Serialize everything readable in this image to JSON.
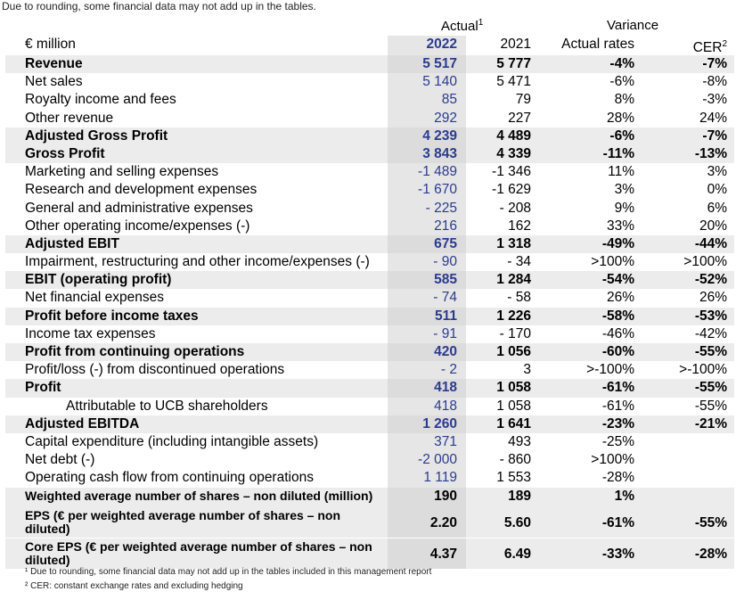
{
  "top_note": "Due to rounding, some financial data may not add up in the tables.",
  "header": {
    "unit": "€ million",
    "actual_group": "Actual",
    "actual_sup": "1",
    "variance_group": "Variance",
    "col_2022": "2022",
    "col_2021": "2021",
    "col_actual_rates": "Actual rates",
    "col_cer": "CER",
    "col_cer_sup": "2"
  },
  "rows": [
    {
      "label": "Revenue",
      "v2022": "5 517",
      "v2021": "5 777",
      "var": "-4%",
      "cer": "-7%",
      "bold": true,
      "shade": true
    },
    {
      "label": "Net sales",
      "v2022": "5 140",
      "v2021": "5 471",
      "var": "-6%",
      "cer": "-8%"
    },
    {
      "label": "Royalty income and fees",
      "v2022": "85",
      "v2021": "79",
      "var": "8%",
      "cer": "-3%"
    },
    {
      "label": "Other revenue",
      "v2022": "292",
      "v2021": "227",
      "var": "28%",
      "cer": "24%"
    },
    {
      "label": "Adjusted Gross Profit",
      "v2022": "4 239",
      "v2021": "4 489",
      "var": "-6%",
      "cer": "-7%",
      "bold": true,
      "shade": true
    },
    {
      "label": "Gross Profit",
      "v2022": "3 843",
      "v2021": "4 339",
      "var": "-11%",
      "cer": "-13%",
      "bold": true,
      "shade": true
    },
    {
      "label": "Marketing and selling expenses",
      "v2022": "-1 489",
      "v2021": "-1 346",
      "var": "11%",
      "cer": "3%"
    },
    {
      "label": "Research and development expenses",
      "v2022": "-1 670",
      "v2021": "-1 629",
      "var": "3%",
      "cer": "0%"
    },
    {
      "label": "General and administrative expenses",
      "v2022": "- 225",
      "v2021": "- 208",
      "var": "9%",
      "cer": "6%"
    },
    {
      "label": "Other operating income/expenses (-)",
      "v2022": "216",
      "v2021": "162",
      "var": "33%",
      "cer": "20%"
    },
    {
      "label": "Adjusted EBIT",
      "v2022": "675",
      "v2021": "1 318",
      "var": "-49%",
      "cer": "-44%",
      "bold": true,
      "shade": true
    },
    {
      "label": "Impairment, restructuring and other income/expenses (-)",
      "v2022": "- 90",
      "v2021": "- 34",
      "var": ">100%",
      "cer": ">100%"
    },
    {
      "label": "EBIT (operating profit)",
      "v2022": "585",
      "v2021": "1 284",
      "var": "-54%",
      "cer": "-52%",
      "bold": true,
      "shade": true
    },
    {
      "label": "Net financial expenses",
      "v2022": "- 74",
      "v2021": "- 58",
      "var": "26%",
      "cer": "26%"
    },
    {
      "label": "Profit before income taxes",
      "v2022": "511",
      "v2021": "1 226",
      "var": "-58%",
      "cer": "-53%",
      "bold": true,
      "shade": true
    },
    {
      "label": "Income tax expenses",
      "v2022": "- 91",
      "v2021": "- 170",
      "var": "-46%",
      "cer": "-42%"
    },
    {
      "label": "Profit from continuing operations",
      "v2022": "420",
      "v2021": "1 056",
      "var": "-60%",
      "cer": "-55%",
      "bold": true,
      "shade": true
    },
    {
      "label": "Profit/loss (-) from discontinued operations",
      "v2022": "- 2",
      "v2021": "3",
      "var": ">-100%",
      "cer": ">-100%"
    },
    {
      "label": "Profit",
      "v2022": "418",
      "v2021": "1 058",
      "var": "-61%",
      "cer": "-55%",
      "bold": true,
      "shade": true
    },
    {
      "label": "Attributable to UCB shareholders",
      "v2022": "418",
      "v2021": "1 058",
      "var": "-61%",
      "cer": "-55%",
      "indent": true
    },
    {
      "label": "Adjusted EBITDA",
      "v2022": "1 260",
      "v2021": "1 641",
      "var": "-23%",
      "cer": "-21%",
      "bold": true,
      "shade": true
    },
    {
      "label": "Capital expenditure (including intangible assets)",
      "v2022": "371",
      "v2021": "493",
      "var": "-25%",
      "cer": ""
    },
    {
      "label": "Net debt (-)",
      "v2022": "-2 000",
      "v2021": "- 860",
      "var": ">100%",
      "cer": ""
    },
    {
      "label": "Operating cash flow from continuing operations",
      "v2022": "1 119",
      "v2021": "1 553",
      "var": "-28%",
      "cer": ""
    }
  ],
  "shares_row": {
    "label": "Weighted average number of shares – non diluted (million)",
    "v2022": "190",
    "v2021": "189",
    "var": "1%",
    "cer": ""
  },
  "eps_row": {
    "label": "EPS (€ per weighted average number of shares – non diluted)",
    "v2022": "2.20",
    "v2021": "5.60",
    "var": "-61%",
    "cer": "-55%"
  },
  "core_eps_row": {
    "label": "Core EPS (€ per weighted average number of shares – non diluted)",
    "v2022": "4.37",
    "v2021": "6.49",
    "var": "-33%",
    "cer": "-28%"
  },
  "footnotes": {
    "f1": "¹ Due to rounding, some financial data may not add up in the tables included in this management report",
    "f2": "² CER: constant exchange rates and excluding hedging"
  }
}
